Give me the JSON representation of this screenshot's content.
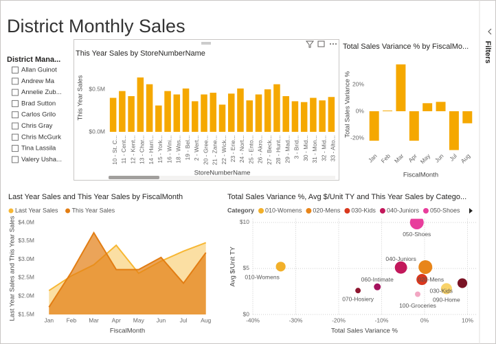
{
  "title": "District Monthly Sales",
  "slicer": {
    "title": "District Mana...",
    "items": [
      "Allan Guinot",
      "Andrew Ma",
      "Annelie Zub...",
      "Brad Sutton",
      "Carlos Grilo",
      "Chris Gray",
      "Chris McGurk",
      "Tina Lassila",
      "Valery Usha..."
    ]
  },
  "filters_pane": {
    "label": "Filters"
  },
  "chart_data": [
    {
      "type": "bar",
      "title": "This Year Sales by StoreNumberName",
      "x_label": "StoreNumberName",
      "y_label": "This Year Sales",
      "categories": [
        "10 - St. C...",
        "11 - Cent...",
        "12 - Kent...",
        "13 - Char...",
        "14 - Harri...",
        "15 - York...",
        "16 - Wini...",
        "18 - Was...",
        "19 - Bel...",
        "2 - Wert...",
        "20 - Gree...",
        "21 - Zane...",
        "22 - Wick...",
        "23 - Erie...",
        "24 - Nort...",
        "25 - Ento...",
        "26 - Akro...",
        "27 - Beck...",
        "28 - Hunt...",
        "29 - Mad...",
        "3 - Brid...",
        "30 - Mid...",
        "31 - Mon...",
        "32 - Mid...",
        "33 - Alto..."
      ],
      "values": [
        0.4,
        0.48,
        0.42,
        0.64,
        0.56,
        0.31,
        0.48,
        0.44,
        0.51,
        0.36,
        0.44,
        0.46,
        0.32,
        0.45,
        0.51,
        0.37,
        0.44,
        0.5,
        0.56,
        0.42,
        0.36,
        0.35,
        0.4,
        0.37,
        0.41
      ],
      "color": "#F5A800",
      "ylim": [
        0,
        0.8
      ],
      "yticks": [
        {
          "value": 0,
          "label": "$0.0M"
        },
        {
          "value": 0.5,
          "label": "$0.5M"
        }
      ],
      "grid": false
    },
    {
      "type": "bar",
      "title": "Total Sales Variance % by FiscalMo...",
      "x_label": "FiscalMonth",
      "y_label": "Total Sales Variance %",
      "categories": [
        "Jan",
        "Feb",
        "Mar",
        "Apr",
        "May",
        "Jun",
        "Jul",
        "Aug"
      ],
      "values": [
        -22,
        0.5,
        35,
        -22,
        6,
        7,
        -29,
        -9
      ],
      "color": "#F5A800",
      "ylim": [
        -30,
        40
      ],
      "yticks": [
        {
          "value": 20,
          "label": "20%"
        },
        {
          "value": 0,
          "label": "0%"
        },
        {
          "value": -20,
          "label": "-20%"
        }
      ],
      "grid": false
    },
    {
      "type": "area",
      "title": "Last Year Sales and This Year Sales by FiscalMonth",
      "x_label": "FiscalMonth",
      "y_label": "Last Year Sales and This Year Sales",
      "categories": [
        "Jan",
        "Feb",
        "Mar",
        "Apr",
        "May",
        "Jun",
        "Jul",
        "Aug"
      ],
      "series": [
        {
          "name": "Last Year Sales",
          "color": "#F7B733",
          "values": [
            2.15,
            2.55,
            2.85,
            3.38,
            2.62,
            2.95,
            3.22,
            3.45
          ]
        },
        {
          "name": "This Year Sales",
          "color": "#E27D13",
          "values": [
            1.7,
            2.65,
            3.72,
            2.72,
            2.72,
            3.05,
            2.35,
            3.18
          ]
        }
      ],
      "ylim": [
        1.5,
        4.0
      ],
      "yticks": [
        {
          "value": 1.5,
          "label": "$1.5M"
        },
        {
          "value": 2.0,
          "label": "$2.0M"
        },
        {
          "value": 2.5,
          "label": "$2.5M"
        },
        {
          "value": 3.0,
          "label": "$3.0M"
        },
        {
          "value": 3.5,
          "label": "$3.5M"
        },
        {
          "value": 4.0,
          "label": "$4.0M"
        }
      ],
      "grid": false
    },
    {
      "type": "scatter",
      "title": "Total Sales Variance %, Avg $/Unit TY and This Year Sales by Catego...",
      "x_label": "Total Sales Variance %",
      "y_label": "Avg $/Unit TY",
      "legend_title": "Category",
      "series": [
        {
          "name": "010-Womens",
          "color": "#F2B02A",
          "legend": true,
          "x": [
            -33.5
          ],
          "values": [
            5.2
          ],
          "sizes": [
            5
          ]
        },
        {
          "name": "020-Mens",
          "color": "#E8851A",
          "legend": true,
          "x": [
            0.2
          ],
          "values": [
            5.15
          ],
          "sizes": [
            10
          ]
        },
        {
          "name": "030-Kids",
          "color": "#D9381E",
          "legend": true,
          "x": [
            -0.6
          ],
          "values": [
            3.8
          ],
          "sizes": [
            6.5
          ]
        },
        {
          "name": "040-Juniors",
          "color": "#C2185B",
          "legend": true,
          "x": [
            -5.5
          ],
          "values": [
            5.1
          ],
          "sizes": [
            8
          ]
        },
        {
          "name": "050-Shoes",
          "color": "#E83E9C",
          "legend": true,
          "x": [
            -1.8
          ],
          "values": [
            10.0
          ],
          "sizes": [
            10
          ]
        },
        {
          "name": "060-Intimate",
          "color": "#A5125E",
          "legend": false,
          "x": [
            -11
          ],
          "values": [
            3.0
          ],
          "sizes": [
            2.5
          ]
        },
        {
          "name": "070-Hosiery",
          "color": "#8E1630",
          "legend": false,
          "x": [
            -15.5
          ],
          "values": [
            2.6
          ],
          "sizes": [
            1.6
          ]
        },
        {
          "name": "090-Home",
          "color": "#F9D36A",
          "legend": false,
          "x": [
            5.1
          ],
          "values": [
            2.8
          ],
          "sizes": [
            6.5
          ]
        },
        {
          "name": "100-Groceries",
          "color": "#F2A7C3",
          "legend": false,
          "x": [
            -1.6
          ],
          "values": [
            2.2
          ],
          "sizes": [
            1.6
          ]
        },
        {
          "name": null,
          "color": "#7A1324",
          "legend": false,
          "x": [
            8.8
          ],
          "values": [
            3.4
          ],
          "sizes": [
            5
          ]
        }
      ],
      "xlim": [
        -40,
        12
      ],
      "xticks": [
        {
          "value": -40,
          "label": "-40%"
        },
        {
          "value": -30,
          "label": "-30%"
        },
        {
          "value": -20,
          "label": "-20%"
        },
        {
          "value": -10,
          "label": "-10%"
        },
        {
          "value": 0,
          "label": "0%"
        },
        {
          "value": 10,
          "label": "10%"
        }
      ],
      "ylim": [
        0,
        10.4
      ],
      "yticks": [
        {
          "value": 0,
          "label": "$0"
        },
        {
          "value": 5,
          "label": "$5"
        },
        {
          "value": 10,
          "label": "$10"
        }
      ],
      "grid": true
    }
  ]
}
